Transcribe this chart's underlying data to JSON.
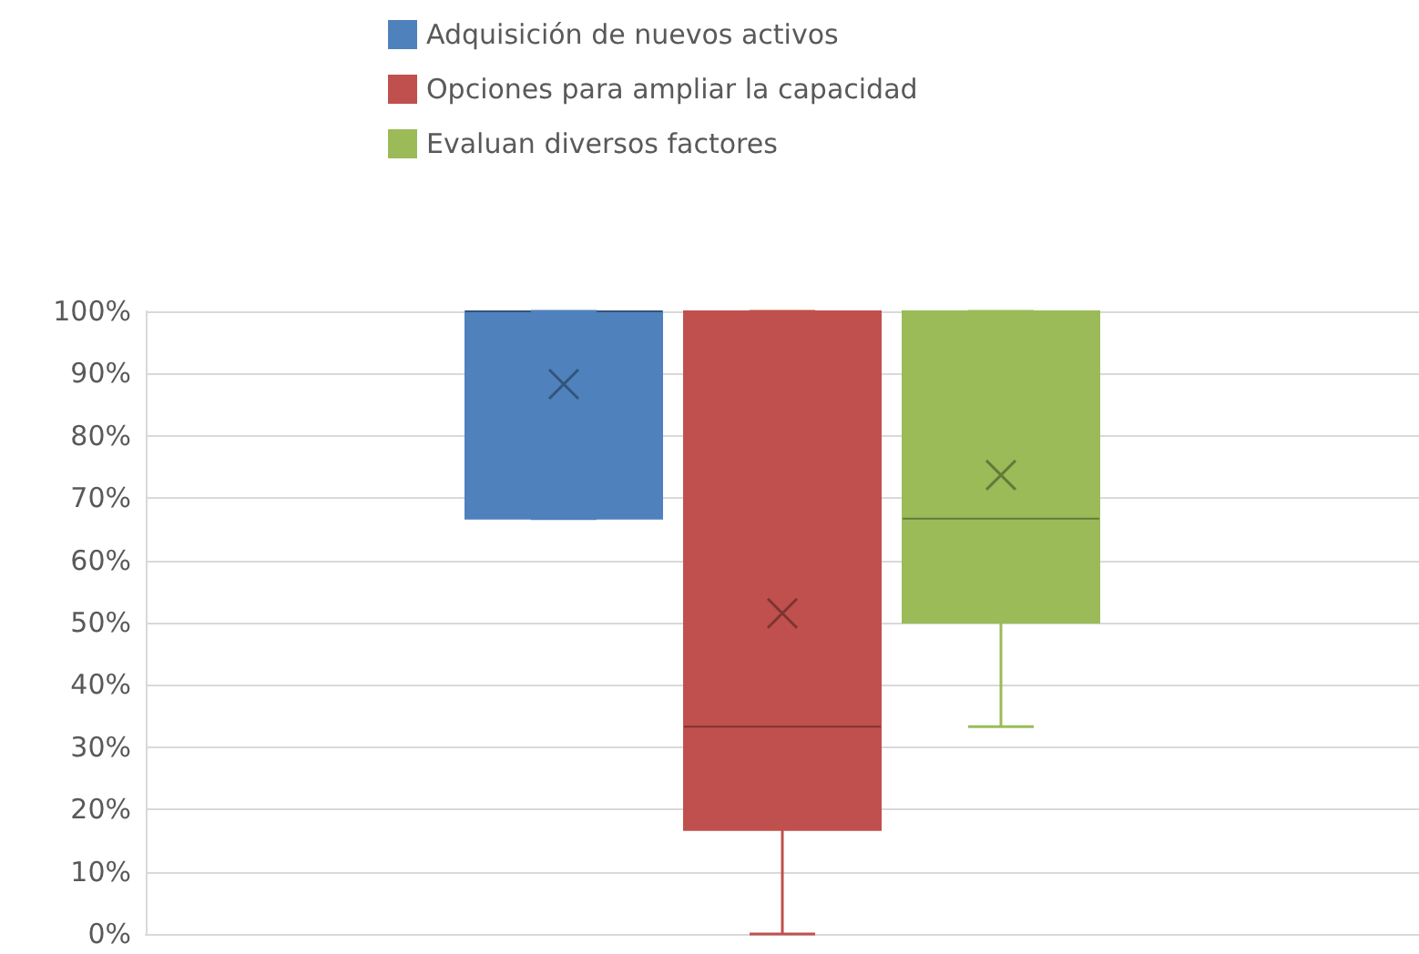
{
  "chart_data": {
    "type": "box",
    "categories": [
      null
    ],
    "series": [
      {
        "name": "Adquisición de nuevos activos",
        "color": "#4f81bd",
        "boxes": [
          {
            "low": 66.7,
            "q1": 66.7,
            "median": 100,
            "q3": 100,
            "high": 100,
            "mean": 88.3
          }
        ]
      },
      {
        "name": "Opciones para ampliar la capacidad",
        "color": "#c0504d",
        "boxes": [
          {
            "low": 0,
            "q1": 16.7,
            "median": 33.3,
            "q3": 100,
            "high": 100,
            "mean": 51.5
          }
        ]
      },
      {
        "name": "Evaluan diversos factores",
        "color": "#9bbb59",
        "boxes": [
          {
            "low": 33.3,
            "q1": 50,
            "median": 66.7,
            "q3": 100,
            "high": 100,
            "mean": 73.7
          }
        ]
      }
    ],
    "ylim": [
      0,
      100
    ],
    "yticks": [
      {
        "value": 0,
        "label": "0%"
      },
      {
        "value": 10,
        "label": "10%"
      },
      {
        "value": 20,
        "label": "20%"
      },
      {
        "value": 30,
        "label": "30%"
      },
      {
        "value": 40,
        "label": "40%"
      },
      {
        "value": 50,
        "label": "50%"
      },
      {
        "value": 60,
        "label": "60%"
      },
      {
        "value": 70,
        "label": "70%"
      },
      {
        "value": 80,
        "label": "80%"
      },
      {
        "value": 90,
        "label": "90%"
      },
      {
        "value": 100,
        "label": "100%"
      }
    ],
    "grid": "y",
    "legend": "top",
    "marker": "cross"
  }
}
